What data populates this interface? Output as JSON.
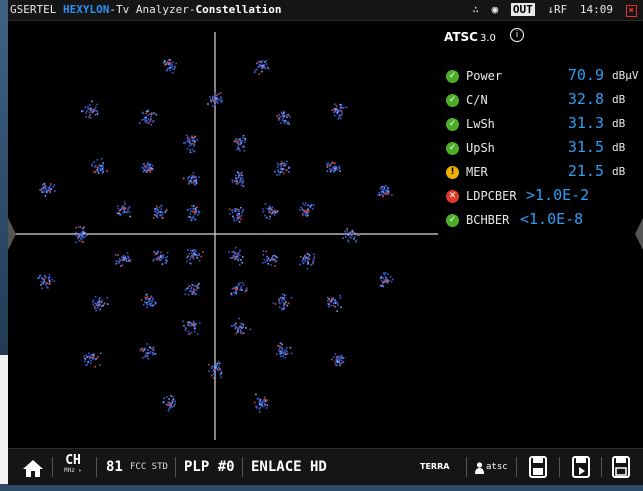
{
  "header": {
    "vendor": "GSERTEL",
    "model": "HEXYLON",
    "sep1": "-",
    "app": "Tv Analyzer",
    "sep2": "-",
    "mode": "Constellation",
    "output_badge": "OUT",
    "input_indicator": "↓RF",
    "time": "14:09"
  },
  "panel": {
    "standard_logo": "ATSC",
    "standard_version": "3.0",
    "measurements": [
      {
        "name": "Power",
        "value": "70.9",
        "unit": "dBµV",
        "status": "ok"
      },
      {
        "name": "C/N",
        "value": "32.8",
        "unit": "dB",
        "status": "ok"
      },
      {
        "name": "LwSh",
        "value": "31.3",
        "unit": "dB",
        "status": "ok"
      },
      {
        "name": "UpSh",
        "value": "31.5",
        "unit": "dB",
        "status": "ok"
      },
      {
        "name": "MER",
        "value": "21.5",
        "unit": "dB",
        "status": "warn"
      },
      {
        "name": "LDPCBER",
        "value": ">1.0E-2",
        "unit": "",
        "status": "err"
      },
      {
        "name": "BCHBER",
        "value": "<1.0E-8",
        "unit": "",
        "status": "ok"
      }
    ]
  },
  "bottom": {
    "ch_label": "CH",
    "ch_sub": "MHz ▸",
    "channel": "81",
    "channel_std": "FCC STD",
    "plp": "PLP #0",
    "link": "ENLACE HD",
    "terra_label": "TERRA",
    "user": "atsc"
  },
  "colors": {
    "accent_blue": "#2d9ef5",
    "ok": "#4caf2a",
    "warn": "#f0b000",
    "err": "#e03a2a"
  }
}
